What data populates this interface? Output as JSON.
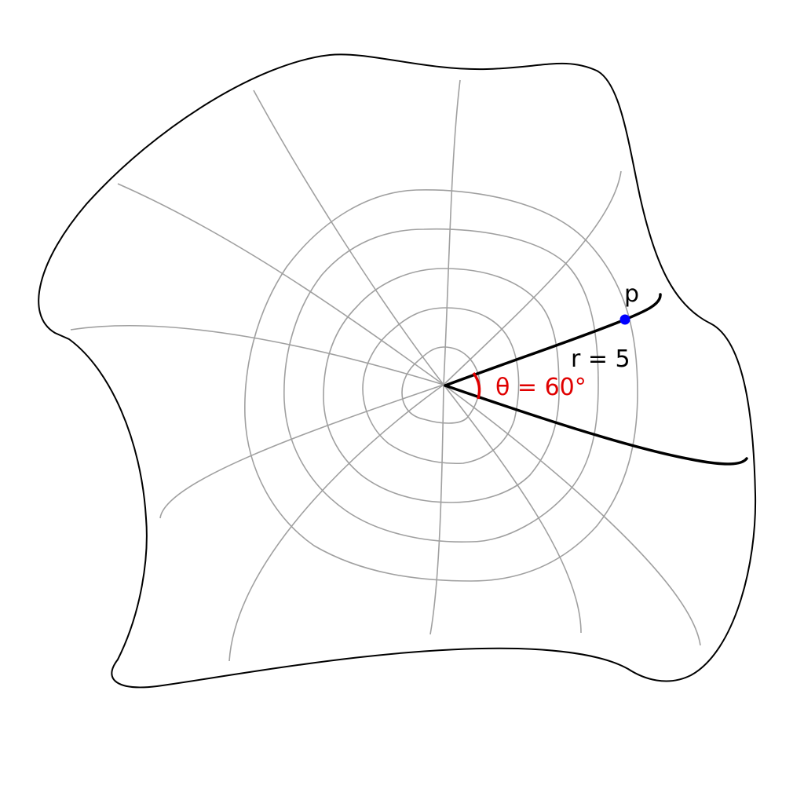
{
  "diagram": {
    "point_label": "p",
    "radius_label": "r = 5",
    "angle_label": "θ = 60°",
    "colors": {
      "outline": "#000000",
      "grid": "#a0a0a0",
      "rays": "#000000",
      "point": "#0000ff",
      "angle": "#e00000",
      "angle_text": "#e00000"
    }
  }
}
